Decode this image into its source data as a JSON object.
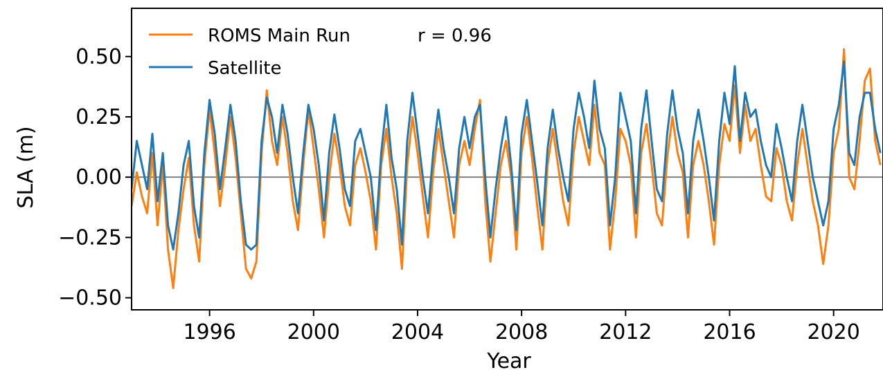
{
  "chart_data": {
    "type": "line",
    "title": "",
    "xlabel": "Year",
    "ylabel": "SLA (m)",
    "xlim": [
      1993.0,
      2021.9
    ],
    "ylim": [
      -0.55,
      0.7
    ],
    "xticks": [
      1996,
      2000,
      2004,
      2008,
      2012,
      2016,
      2020
    ],
    "xtick_labels": [
      "1996",
      "2000",
      "2004",
      "2008",
      "2012",
      "2016",
      "2020"
    ],
    "yticks": [
      -0.5,
      -0.25,
      0.0,
      0.25,
      0.5
    ],
    "ytick_labels": [
      "−0.50",
      "−0.25",
      "0.00",
      "0.25",
      "0.50"
    ],
    "grid": false,
    "zero_line": {
      "y": 0.0,
      "color": "#808080"
    },
    "legend_position": "upper-left",
    "annotation": "r = 0.96",
    "series": [
      {
        "name": "ROMS Main Run",
        "color": "#ff7f0e",
        "x": [
          1993.0,
          1993.2,
          1993.4,
          1993.6,
          1993.8,
          1994.0,
          1994.2,
          1994.4,
          1994.6,
          1994.8,
          1995.0,
          1995.2,
          1995.4,
          1995.6,
          1995.8,
          1996.0,
          1996.2,
          1996.4,
          1996.6,
          1996.8,
          1997.0,
          1997.2,
          1997.4,
          1997.6,
          1997.8,
          1998.0,
          1998.2,
          1998.4,
          1998.6,
          1998.8,
          1999.0,
          1999.2,
          1999.4,
          1999.6,
          1999.8,
          2000.0,
          2000.2,
          2000.4,
          2000.6,
          2000.8,
          2001.0,
          2001.2,
          2001.4,
          2001.6,
          2001.8,
          2002.0,
          2002.2,
          2002.4,
          2002.6,
          2002.8,
          2003.0,
          2003.2,
          2003.4,
          2003.6,
          2003.8,
          2004.0,
          2004.2,
          2004.4,
          2004.6,
          2004.8,
          2005.0,
          2005.2,
          2005.4,
          2005.6,
          2005.8,
          2006.0,
          2006.2,
          2006.4,
          2006.6,
          2006.8,
          2007.0,
          2007.2,
          2007.4,
          2007.6,
          2007.8,
          2008.0,
          2008.2,
          2008.4,
          2008.6,
          2008.8,
          2009.0,
          2009.2,
          2009.4,
          2009.6,
          2009.8,
          2010.0,
          2010.2,
          2010.4,
          2010.6,
          2010.8,
          2011.0,
          2011.2,
          2011.4,
          2011.6,
          2011.8,
          2012.0,
          2012.2,
          2012.4,
          2012.6,
          2012.8,
          2013.0,
          2013.2,
          2013.4,
          2013.6,
          2013.8,
          2014.0,
          2014.2,
          2014.4,
          2014.6,
          2014.8,
          2015.0,
          2015.2,
          2015.4,
          2015.6,
          2015.8,
          2016.0,
          2016.2,
          2016.4,
          2016.6,
          2016.8,
          2017.0,
          2017.2,
          2017.4,
          2017.6,
          2017.8,
          2018.0,
          2018.2,
          2018.4,
          2018.6,
          2018.8,
          2019.0,
          2019.2,
          2019.4,
          2019.6,
          2019.8,
          2020.0,
          2020.2,
          2020.4,
          2020.6,
          2020.8,
          2021.0,
          2021.2,
          2021.4,
          2021.6,
          2021.8
        ],
        "values": [
          -0.12,
          0.02,
          -0.08,
          -0.15,
          0.1,
          -0.2,
          0.05,
          -0.3,
          -0.46,
          -0.22,
          -0.05,
          0.08,
          -0.2,
          -0.35,
          0.05,
          0.28,
          0.1,
          -0.12,
          0.05,
          0.25,
          0.08,
          -0.15,
          -0.38,
          -0.42,
          -0.35,
          0.1,
          0.36,
          0.15,
          0.05,
          0.25,
          0.1,
          -0.1,
          -0.22,
          0.05,
          0.28,
          0.12,
          -0.05,
          -0.25,
          0.0,
          0.18,
          0.05,
          -0.12,
          -0.2,
          0.05,
          0.12,
          0.02,
          -0.1,
          -0.3,
          0.05,
          0.2,
          0.0,
          -0.15,
          -0.38,
          0.05,
          0.25,
          0.1,
          -0.08,
          -0.25,
          0.02,
          0.2,
          0.05,
          -0.1,
          -0.25,
          0.05,
          0.15,
          0.05,
          0.2,
          0.32,
          -0.1,
          -0.35,
          -0.15,
          0.05,
          0.15,
          0.0,
          -0.3,
          0.1,
          0.25,
          0.08,
          -0.12,
          -0.3,
          0.05,
          0.2,
          0.05,
          -0.1,
          -0.2,
          0.1,
          0.25,
          0.15,
          0.05,
          0.3,
          0.1,
          0.05,
          -0.3,
          -0.1,
          0.2,
          0.15,
          0.05,
          -0.25,
          0.1,
          0.22,
          0.05,
          -0.15,
          -0.2,
          0.08,
          0.25,
          0.1,
          0.02,
          -0.25,
          0.05,
          0.15,
          0.05,
          -0.1,
          -0.28,
          0.05,
          0.22,
          0.15,
          0.38,
          0.1,
          0.3,
          0.15,
          0.2,
          0.05,
          -0.08,
          -0.1,
          0.12,
          0.05,
          -0.1,
          -0.18,
          0.05,
          0.2,
          0.05,
          -0.1,
          -0.2,
          -0.36,
          -0.2,
          0.1,
          0.2,
          0.53,
          0.0,
          -0.05,
          0.15,
          0.4,
          0.45,
          0.15,
          0.05
        ]
      },
      {
        "name": "Satellite",
        "color": "#1f77b4",
        "x": [
          1993.0,
          1993.2,
          1993.4,
          1993.6,
          1993.8,
          1994.0,
          1994.2,
          1994.4,
          1994.6,
          1994.8,
          1995.0,
          1995.2,
          1995.4,
          1995.6,
          1995.8,
          1996.0,
          1996.2,
          1996.4,
          1996.6,
          1996.8,
          1997.0,
          1997.2,
          1997.4,
          1997.6,
          1997.8,
          1998.0,
          1998.2,
          1998.4,
          1998.6,
          1998.8,
          1999.0,
          1999.2,
          1999.4,
          1999.6,
          1999.8,
          2000.0,
          2000.2,
          2000.4,
          2000.6,
          2000.8,
          2001.0,
          2001.2,
          2001.4,
          2001.6,
          2001.8,
          2002.0,
          2002.2,
          2002.4,
          2002.6,
          2002.8,
          2003.0,
          2003.2,
          2003.4,
          2003.6,
          2003.8,
          2004.0,
          2004.2,
          2004.4,
          2004.6,
          2004.8,
          2005.0,
          2005.2,
          2005.4,
          2005.6,
          2005.8,
          2006.0,
          2006.2,
          2006.4,
          2006.6,
          2006.8,
          2007.0,
          2007.2,
          2007.4,
          2007.6,
          2007.8,
          2008.0,
          2008.2,
          2008.4,
          2008.6,
          2008.8,
          2009.0,
          2009.2,
          2009.4,
          2009.6,
          2009.8,
          2010.0,
          2010.2,
          2010.4,
          2010.6,
          2010.8,
          2011.0,
          2011.2,
          2011.4,
          2011.6,
          2011.8,
          2012.0,
          2012.2,
          2012.4,
          2012.6,
          2012.8,
          2013.0,
          2013.2,
          2013.4,
          2013.6,
          2013.8,
          2014.0,
          2014.2,
          2014.4,
          2014.6,
          2014.8,
          2015.0,
          2015.2,
          2015.4,
          2015.6,
          2015.8,
          2016.0,
          2016.2,
          2016.4,
          2016.6,
          2016.8,
          2017.0,
          2017.2,
          2017.4,
          2017.6,
          2017.8,
          2018.0,
          2018.2,
          2018.4,
          2018.6,
          2018.8,
          2019.0,
          2019.2,
          2019.4,
          2019.6,
          2019.8,
          2020.0,
          2020.2,
          2020.4,
          2020.6,
          2020.8,
          2021.0,
          2021.2,
          2021.4,
          2021.6,
          2021.8
        ],
        "values": [
          -0.05,
          0.15,
          0.05,
          -0.05,
          0.18,
          -0.1,
          0.1,
          -0.2,
          -0.3,
          -0.15,
          0.05,
          0.15,
          -0.12,
          -0.25,
          0.1,
          0.32,
          0.18,
          -0.05,
          0.12,
          0.3,
          0.15,
          -0.1,
          -0.28,
          -0.3,
          -0.28,
          0.15,
          0.33,
          0.25,
          0.1,
          0.3,
          0.18,
          0.0,
          -0.15,
          0.1,
          0.3,
          0.2,
          0.05,
          -0.18,
          0.1,
          0.26,
          0.12,
          -0.05,
          -0.12,
          0.15,
          0.2,
          0.1,
          0.0,
          -0.22,
          0.1,
          0.3,
          0.08,
          -0.05,
          -0.28,
          0.15,
          0.35,
          0.18,
          0.0,
          -0.15,
          0.1,
          0.28,
          0.12,
          0.0,
          -0.15,
          0.12,
          0.25,
          0.12,
          0.25,
          0.3,
          0.0,
          -0.25,
          -0.05,
          0.12,
          0.25,
          0.05,
          -0.22,
          0.18,
          0.32,
          0.15,
          -0.02,
          -0.2,
          0.12,
          0.28,
          0.12,
          0.0,
          -0.1,
          0.2,
          0.35,
          0.25,
          0.12,
          0.4,
          0.2,
          0.12,
          -0.2,
          0.0,
          0.35,
          0.25,
          0.15,
          -0.15,
          0.2,
          0.36,
          0.15,
          -0.05,
          -0.1,
          0.18,
          0.36,
          0.2,
          0.1,
          -0.15,
          0.15,
          0.28,
          0.15,
          0.0,
          -0.18,
          0.15,
          0.35,
          0.22,
          0.46,
          0.15,
          0.35,
          0.25,
          0.28,
          0.15,
          0.05,
          0.0,
          0.22,
          0.12,
          0.0,
          -0.1,
          0.15,
          0.3,
          0.15,
          0.0,
          -0.1,
          -0.2,
          -0.1,
          0.2,
          0.3,
          0.48,
          0.1,
          0.05,
          0.25,
          0.35,
          0.35,
          0.2,
          0.1
        ]
      }
    ]
  }
}
